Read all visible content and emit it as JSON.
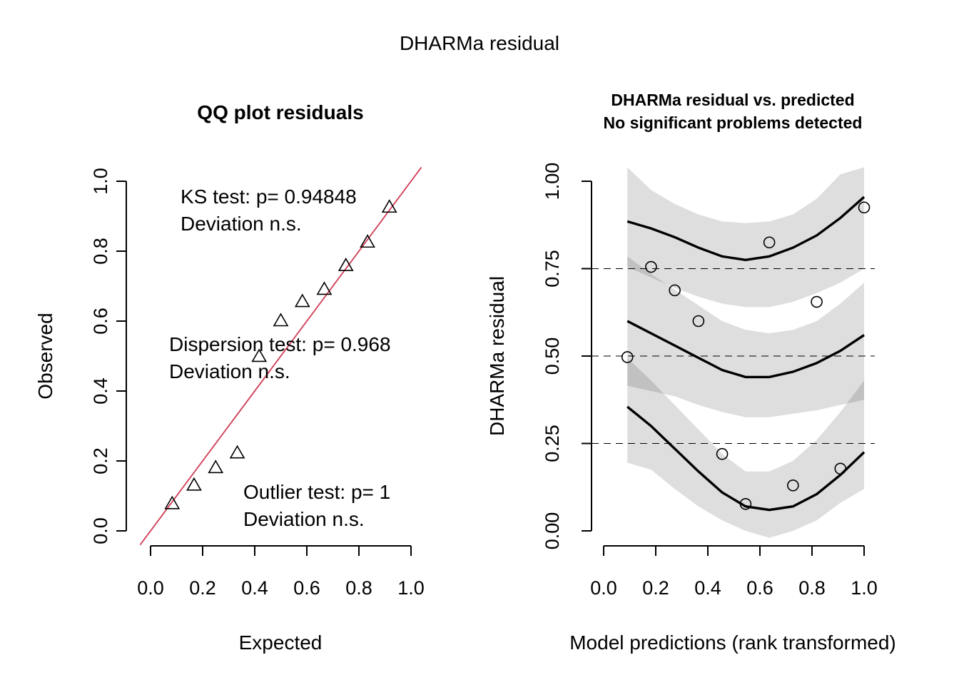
{
  "main_title": "DHARMa residual",
  "chart_data": [
    {
      "type": "scatter",
      "title": "QQ plot residuals",
      "xlabel": "Expected",
      "ylabel": "Observed",
      "xlim": [
        0,
        1
      ],
      "ylim": [
        0,
        1
      ],
      "x_ticks": [
        "0.0",
        "0.2",
        "0.4",
        "0.6",
        "0.8",
        "1.0"
      ],
      "y_ticks": [
        "0.0",
        "0.2",
        "0.4",
        "0.6",
        "0.8",
        "1.0"
      ],
      "x": [
        0.083,
        0.167,
        0.25,
        0.333,
        0.417,
        0.5,
        0.583,
        0.667,
        0.75,
        0.833,
        0.917
      ],
      "y": [
        0.077,
        0.13,
        0.18,
        0.222,
        0.498,
        0.6,
        0.655,
        0.69,
        0.758,
        0.825,
        0.925
      ],
      "marker": "triangle",
      "reference_line": {
        "intercept": 0,
        "slope": 1,
        "color": "#d03c55"
      },
      "annotations": [
        {
          "id": "ks",
          "lines": [
            "KS test: p= 0.94848",
            "Deviation  n.s."
          ]
        },
        {
          "id": "dispersion",
          "lines": [
            "Dispersion test: p= 0.968",
            "Deviation  n.s."
          ]
        },
        {
          "id": "outlier",
          "lines": [
            "Outlier test: p= 1",
            "Deviation  n.s."
          ]
        }
      ]
    },
    {
      "type": "scatter",
      "title": "DHARMa residual vs. predicted",
      "subtitle": "No significant problems detected",
      "xlabel": "Model predictions (rank transformed)",
      "ylabel": "DHARMa residual",
      "xlim": [
        0,
        1
      ],
      "ylim": [
        0,
        1
      ],
      "x_ticks": [
        "0.0",
        "0.2",
        "0.4",
        "0.6",
        "0.8",
        "1.0"
      ],
      "y_ticks": [
        "0.00",
        "0.25",
        "0.50",
        "0.75",
        "1.00"
      ],
      "reference_lines_y": [
        0.25,
        0.5,
        0.75
      ],
      "points": {
        "x": [
          0.091,
          0.182,
          0.273,
          0.364,
          0.455,
          0.545,
          0.636,
          0.727,
          0.818,
          0.909,
          1.0
        ],
        "y": [
          0.497,
          0.755,
          0.688,
          0.6,
          0.22,
          0.077,
          0.825,
          0.13,
          0.655,
          0.178,
          0.925
        ]
      },
      "quantile_x": [
        0.091,
        0.182,
        0.273,
        0.364,
        0.455,
        0.545,
        0.636,
        0.727,
        0.818,
        0.909,
        1.0
      ],
      "quantile_lines": [
        {
          "quantile": 0.25,
          "values": [
            0.355,
            0.3,
            0.235,
            0.17,
            0.11,
            0.07,
            0.06,
            0.07,
            0.105,
            0.16,
            0.225
          ]
        },
        {
          "quantile": 0.5,
          "values": [
            0.6,
            0.565,
            0.53,
            0.495,
            0.46,
            0.44,
            0.44,
            0.455,
            0.48,
            0.515,
            0.56
          ]
        },
        {
          "quantile": 0.75,
          "values": [
            0.885,
            0.865,
            0.84,
            0.81,
            0.785,
            0.775,
            0.785,
            0.81,
            0.845,
            0.895,
            0.955
          ]
        }
      ],
      "bands": [
        {
          "quantile": 0.25,
          "lower": [
            0.195,
            0.175,
            0.12,
            0.07,
            0.03,
            0.0,
            -0.02,
            0.0,
            0.03,
            0.08,
            0.12
          ],
          "upper": [
            0.495,
            0.43,
            0.36,
            0.29,
            0.22,
            0.17,
            0.17,
            0.2,
            0.26,
            0.34,
            0.43
          ]
        },
        {
          "quantile": 0.5,
          "lower": [
            0.415,
            0.4,
            0.385,
            0.36,
            0.34,
            0.325,
            0.325,
            0.335,
            0.345,
            0.36,
            0.375
          ],
          "upper": [
            0.785,
            0.735,
            0.69,
            0.645,
            0.6,
            0.575,
            0.565,
            0.575,
            0.6,
            0.65,
            0.71
          ]
        },
        {
          "quantile": 0.75,
          "lower": [
            0.755,
            0.725,
            0.695,
            0.67,
            0.65,
            0.64,
            0.64,
            0.655,
            0.68,
            0.71,
            0.75
          ],
          "upper": [
            1.04,
            0.975,
            0.935,
            0.905,
            0.885,
            0.88,
            0.885,
            0.905,
            0.95,
            1.02,
            1.04
          ]
        }
      ]
    }
  ]
}
